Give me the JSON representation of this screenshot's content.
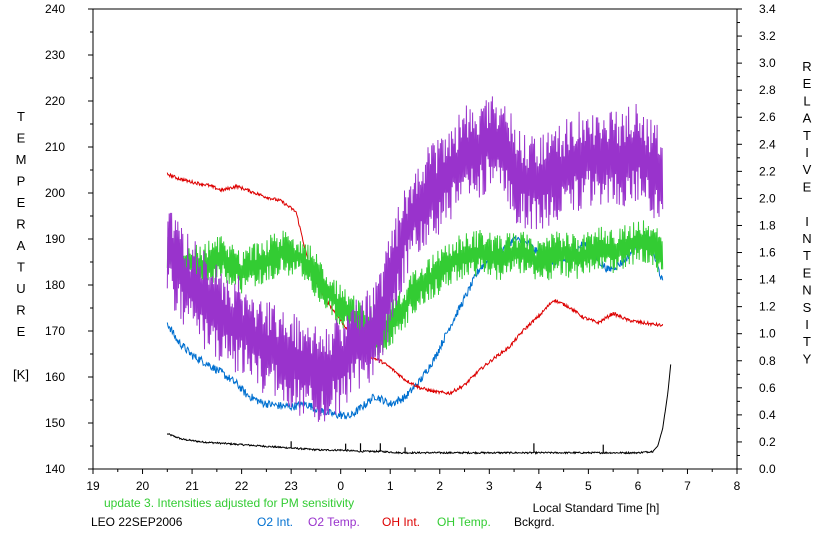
{
  "chart_data": {
    "type": "line",
    "xlabel": "Local Standard Time [h]",
    "ylabel_left": [
      "T",
      "E",
      "M",
      "P",
      "E",
      "R",
      "A",
      "T",
      "U",
      "R",
      "E",
      "",
      "[K]"
    ],
    "ylabel_right": [
      "R",
      "E",
      "L",
      "A",
      "T",
      "I",
      "V",
      "E",
      "",
      "I",
      "N",
      "T",
      "E",
      "N",
      "S",
      "I",
      "T",
      "Y"
    ],
    "x_ticks": [
      "19",
      "20",
      "21",
      "22",
      "23",
      "0",
      "1",
      "2",
      "3",
      "4",
      "5",
      "6",
      "7",
      "8"
    ],
    "y_left_ticks": [
      "140",
      "150",
      "160",
      "170",
      "180",
      "190",
      "200",
      "210",
      "220",
      "230",
      "240"
    ],
    "y_right_ticks": [
      "0.0",
      "0.2",
      "0.4",
      "0.6",
      "0.8",
      "1.0",
      "1.2",
      "1.4",
      "1.6",
      "1.8",
      "2.0",
      "2.2",
      "2.4",
      "2.6",
      "2.8",
      "3.0",
      "3.2",
      "3.4"
    ],
    "xlim": [
      19,
      32
    ],
    "ylim_left": [
      140,
      240
    ],
    "ylim_right": [
      0,
      3.4
    ],
    "grid": false,
    "note": "update 3. Intensities adjusted for PM sensitivity",
    "station": "LEO 22SEP2006",
    "series": [
      {
        "name": "O2 Int.",
        "axis": "right",
        "color": "#0070d0",
        "noise": 0.03,
        "x": [
          20.5,
          20.7,
          21.0,
          21.3,
          21.6,
          21.9,
          22.1,
          22.4,
          22.7,
          23.0,
          23.3,
          23.6,
          23.9,
          24.2,
          24.4,
          24.7,
          25.0,
          25.3,
          25.6,
          25.9,
          26.2,
          26.5,
          26.8,
          27.0,
          27.2,
          27.5,
          27.8,
          28.0,
          28.3,
          28.6,
          28.9,
          29.1,
          29.4,
          29.7,
          30.0,
          30.2,
          30.5
        ],
        "y": [
          1.08,
          0.95,
          0.84,
          0.78,
          0.71,
          0.63,
          0.55,
          0.49,
          0.47,
          0.46,
          0.48,
          0.43,
          0.4,
          0.39,
          0.45,
          0.54,
          0.48,
          0.53,
          0.65,
          0.82,
          1.05,
          1.26,
          1.48,
          1.55,
          1.6,
          1.7,
          1.66,
          1.59,
          1.53,
          1.55,
          1.67,
          1.58,
          1.47,
          1.53,
          1.66,
          1.72,
          1.38
        ]
      },
      {
        "name": "O2 Temp.",
        "axis": "left",
        "color": "#9933cc",
        "noise": 9,
        "x": [
          20.5,
          20.8,
          21.2,
          21.6,
          22.0,
          22.4,
          22.8,
          23.2,
          23.6,
          24.0,
          24.3,
          24.7,
          25.0,
          25.3,
          25.6,
          26.0,
          26.5,
          27.0,
          27.3,
          27.6,
          28.0,
          28.5,
          29.0,
          29.5,
          30.0,
          30.3,
          30.5
        ],
        "y": [
          188,
          182,
          177,
          173,
          171,
          167,
          165,
          162,
          160,
          163,
          167,
          170,
          180,
          192,
          198,
          202,
          208,
          211,
          210,
          203,
          202,
          205,
          208,
          207,
          209,
          205,
          203
        ]
      },
      {
        "name": "OH Int.",
        "axis": "right",
        "color": "#dd0000",
        "noise": 0.012,
        "x": [
          20.5,
          20.7,
          21.0,
          21.3,
          21.6,
          21.9,
          22.2,
          22.5,
          22.8,
          23.1,
          23.4,
          23.7,
          24.0,
          24.3,
          24.6,
          24.8,
          25.0,
          25.3,
          25.6,
          25.9,
          26.2,
          26.5,
          26.8,
          27.1,
          27.4,
          27.7,
          28.0,
          28.3,
          28.6,
          28.9,
          29.2,
          29.5,
          29.8,
          30.1,
          30.5
        ],
        "y": [
          2.18,
          2.15,
          2.12,
          2.1,
          2.06,
          2.09,
          2.05,
          2.01,
          1.98,
          1.9,
          1.45,
          1.25,
          1.1,
          0.95,
          0.83,
          0.8,
          0.75,
          0.66,
          0.6,
          0.57,
          0.56,
          0.62,
          0.73,
          0.82,
          0.9,
          1.03,
          1.13,
          1.25,
          1.2,
          1.12,
          1.08,
          1.15,
          1.1,
          1.08,
          1.06
        ]
      },
      {
        "name": "OH Temp.",
        "axis": "left",
        "color": "#33cc33",
        "noise": 5,
        "x": [
          20.5,
          20.8,
          21.2,
          21.6,
          22.0,
          22.4,
          22.8,
          23.2,
          23.6,
          24.0,
          24.4,
          24.8,
          25.2,
          25.6,
          26.0,
          26.4,
          26.8,
          27.2,
          27.6,
          28.0,
          28.4,
          28.8,
          29.2,
          29.6,
          30.0,
          30.3,
          30.5
        ],
        "y": [
          188,
          185,
          184,
          186,
          183,
          185,
          187,
          186,
          181,
          175,
          172,
          169,
          174,
          180,
          183,
          186,
          187,
          186,
          187,
          185,
          187,
          186,
          188,
          187,
          190,
          188,
          187
        ]
      },
      {
        "name": "Bckgrd.",
        "axis": "right",
        "color": "#000000",
        "noise": 0.006,
        "x": [
          20.5,
          20.8,
          21.2,
          21.6,
          22.0,
          22.4,
          22.8,
          23.2,
          23.6,
          24.0,
          24.4,
          24.8,
          25.2,
          25.6,
          26.0,
          26.4,
          26.8,
          27.2,
          27.6,
          28.0,
          28.4,
          28.8,
          29.2,
          29.6,
          30.0,
          30.3,
          30.4,
          30.5,
          30.6,
          30.67
        ],
        "y": [
          0.26,
          0.22,
          0.2,
          0.19,
          0.18,
          0.17,
          0.16,
          0.15,
          0.14,
          0.14,
          0.13,
          0.13,
          0.12,
          0.12,
          0.12,
          0.12,
          0.12,
          0.12,
          0.12,
          0.12,
          0.12,
          0.12,
          0.12,
          0.12,
          0.12,
          0.13,
          0.17,
          0.3,
          0.55,
          0.8
        ]
      }
    ],
    "spikes": [
      {
        "series": "Bckgrd.",
        "x": [
          23.0,
          24.1,
          24.4,
          24.8,
          25.3,
          27.9,
          29.3
        ],
        "height": [
          0.05,
          0.05,
          0.06,
          0.06,
          0.04,
          0.07,
          0.06
        ]
      }
    ]
  }
}
